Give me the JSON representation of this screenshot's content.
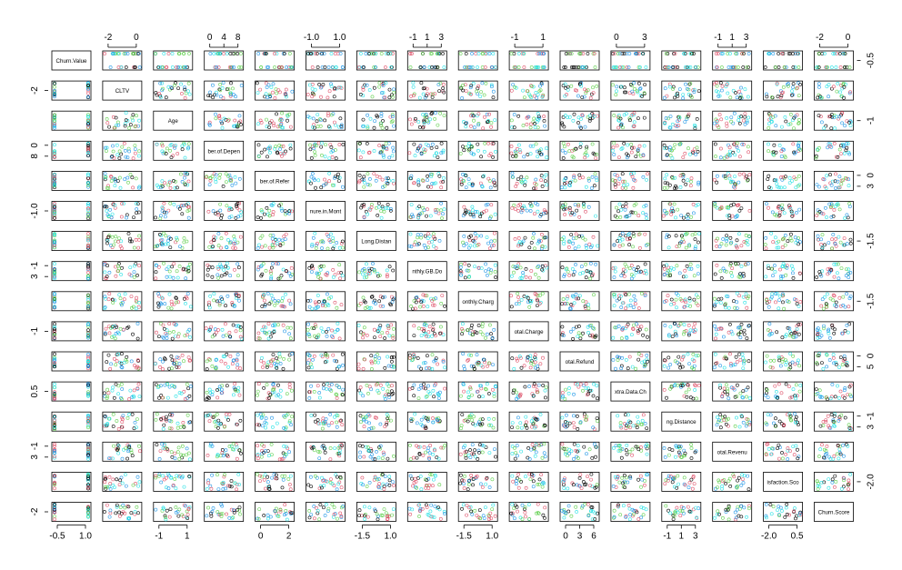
{
  "chart_data": {
    "type": "scatter",
    "subtype": "scatterplot-matrix",
    "variables": [
      "Churn.Value",
      "CLTV",
      "Age",
      "Number.of.Dependents",
      "Number.of.Referrals",
      "Tenure.in.Months",
      "Avg.Monthly.Long.Distance.Charges",
      "Avg.Monthly.GB.Download",
      "Monthly.Charge",
      "Total.Charges",
      "Total.Refunds",
      "Total.Extra.Data.Charges",
      "Total.Long.Distance.Charges",
      "Total.Revenue",
      "Satisfaction.Score",
      "Churn.Score"
    ],
    "diagonal_labels": [
      "Churn.Value",
      "CLTV",
      "Age",
      "ber.of.Depen",
      "ber.of.Refer",
      "nure.in.Mont",
      "Long.Distan",
      "nthly.GB.Do",
      "onthly.Charg",
      "otal.Charge",
      "otal.Refund",
      "xtra.Data.Ch",
      "ng.Distance",
      "otal.Revenu",
      "isfaction.Sco",
      "Churn.Score"
    ],
    "top_axis": [
      {
        "col": 1,
        "ticks": [
          "-2",
          "0"
        ]
      },
      {
        "col": 3,
        "ticks": [
          "0",
          "4",
          "8"
        ]
      },
      {
        "col": 5,
        "ticks": [
          "-1.0",
          "1.0"
        ]
      },
      {
        "col": 7,
        "ticks": [
          "-1",
          "1",
          "3"
        ]
      },
      {
        "col": 9,
        "ticks": [
          "-1",
          "1"
        ]
      },
      {
        "col": 11,
        "ticks": [
          "0",
          "3"
        ]
      },
      {
        "col": 13,
        "ticks": [
          "-1",
          "1",
          "3"
        ]
      },
      {
        "col": 15,
        "ticks": [
          "-2",
          "0"
        ]
      }
    ],
    "bottom_axis": [
      {
        "col": 0,
        "ticks": [
          "-0.5",
          "1.0"
        ]
      },
      {
        "col": 2,
        "ticks": [
          "-1",
          "1"
        ]
      },
      {
        "col": 4,
        "ticks": [
          "0",
          "2"
        ]
      },
      {
        "col": 6,
        "ticks": [
          "-1.5",
          "1.0"
        ]
      },
      {
        "col": 8,
        "ticks": [
          "-1.5",
          "1.0"
        ]
      },
      {
        "col": 10,
        "ticks": [
          "0",
          "3",
          "6"
        ]
      },
      {
        "col": 12,
        "ticks": [
          "-1",
          "1",
          "3"
        ]
      },
      {
        "col": 14,
        "ticks": [
          "-2.0",
          "0.5"
        ]
      }
    ],
    "left_axis": [
      {
        "row": 1,
        "ticks": [
          "-2"
        ]
      },
      {
        "row": 3,
        "ticks": [
          "0",
          "8"
        ]
      },
      {
        "row": 5,
        "ticks": [
          "-1.0"
        ]
      },
      {
        "row": 7,
        "ticks": [
          "-1",
          "3"
        ]
      },
      {
        "row": 9,
        "ticks": [
          "-1"
        ]
      },
      {
        "row": 11,
        "ticks": [
          "0.5"
        ]
      },
      {
        "row": 13,
        "ticks": [
          "-1",
          "3"
        ]
      },
      {
        "row": 15,
        "ticks": [
          "-2"
        ]
      }
    ],
    "right_axis": [
      {
        "row": 0,
        "ticks": [
          "-0.5"
        ]
      },
      {
        "row": 2,
        "ticks": [
          "-1"
        ]
      },
      {
        "row": 4,
        "ticks": [
          "0",
          "3"
        ]
      },
      {
        "row": 6,
        "ticks": [
          "-1.5"
        ]
      },
      {
        "row": 8,
        "ticks": [
          "-1.5"
        ]
      },
      {
        "row": 10,
        "ticks": [
          "0",
          "5"
        ]
      },
      {
        "row": 12,
        "ticks": [
          "-1",
          "3"
        ]
      },
      {
        "row": 14,
        "ticks": [
          "-2.0"
        ]
      }
    ],
    "point_colors": [
      "#000000",
      "#DF536B",
      "#61D04F",
      "#2297E6",
      "#28E2E5"
    ],
    "marker": "open-circle",
    "grid": false,
    "legend": "none"
  }
}
